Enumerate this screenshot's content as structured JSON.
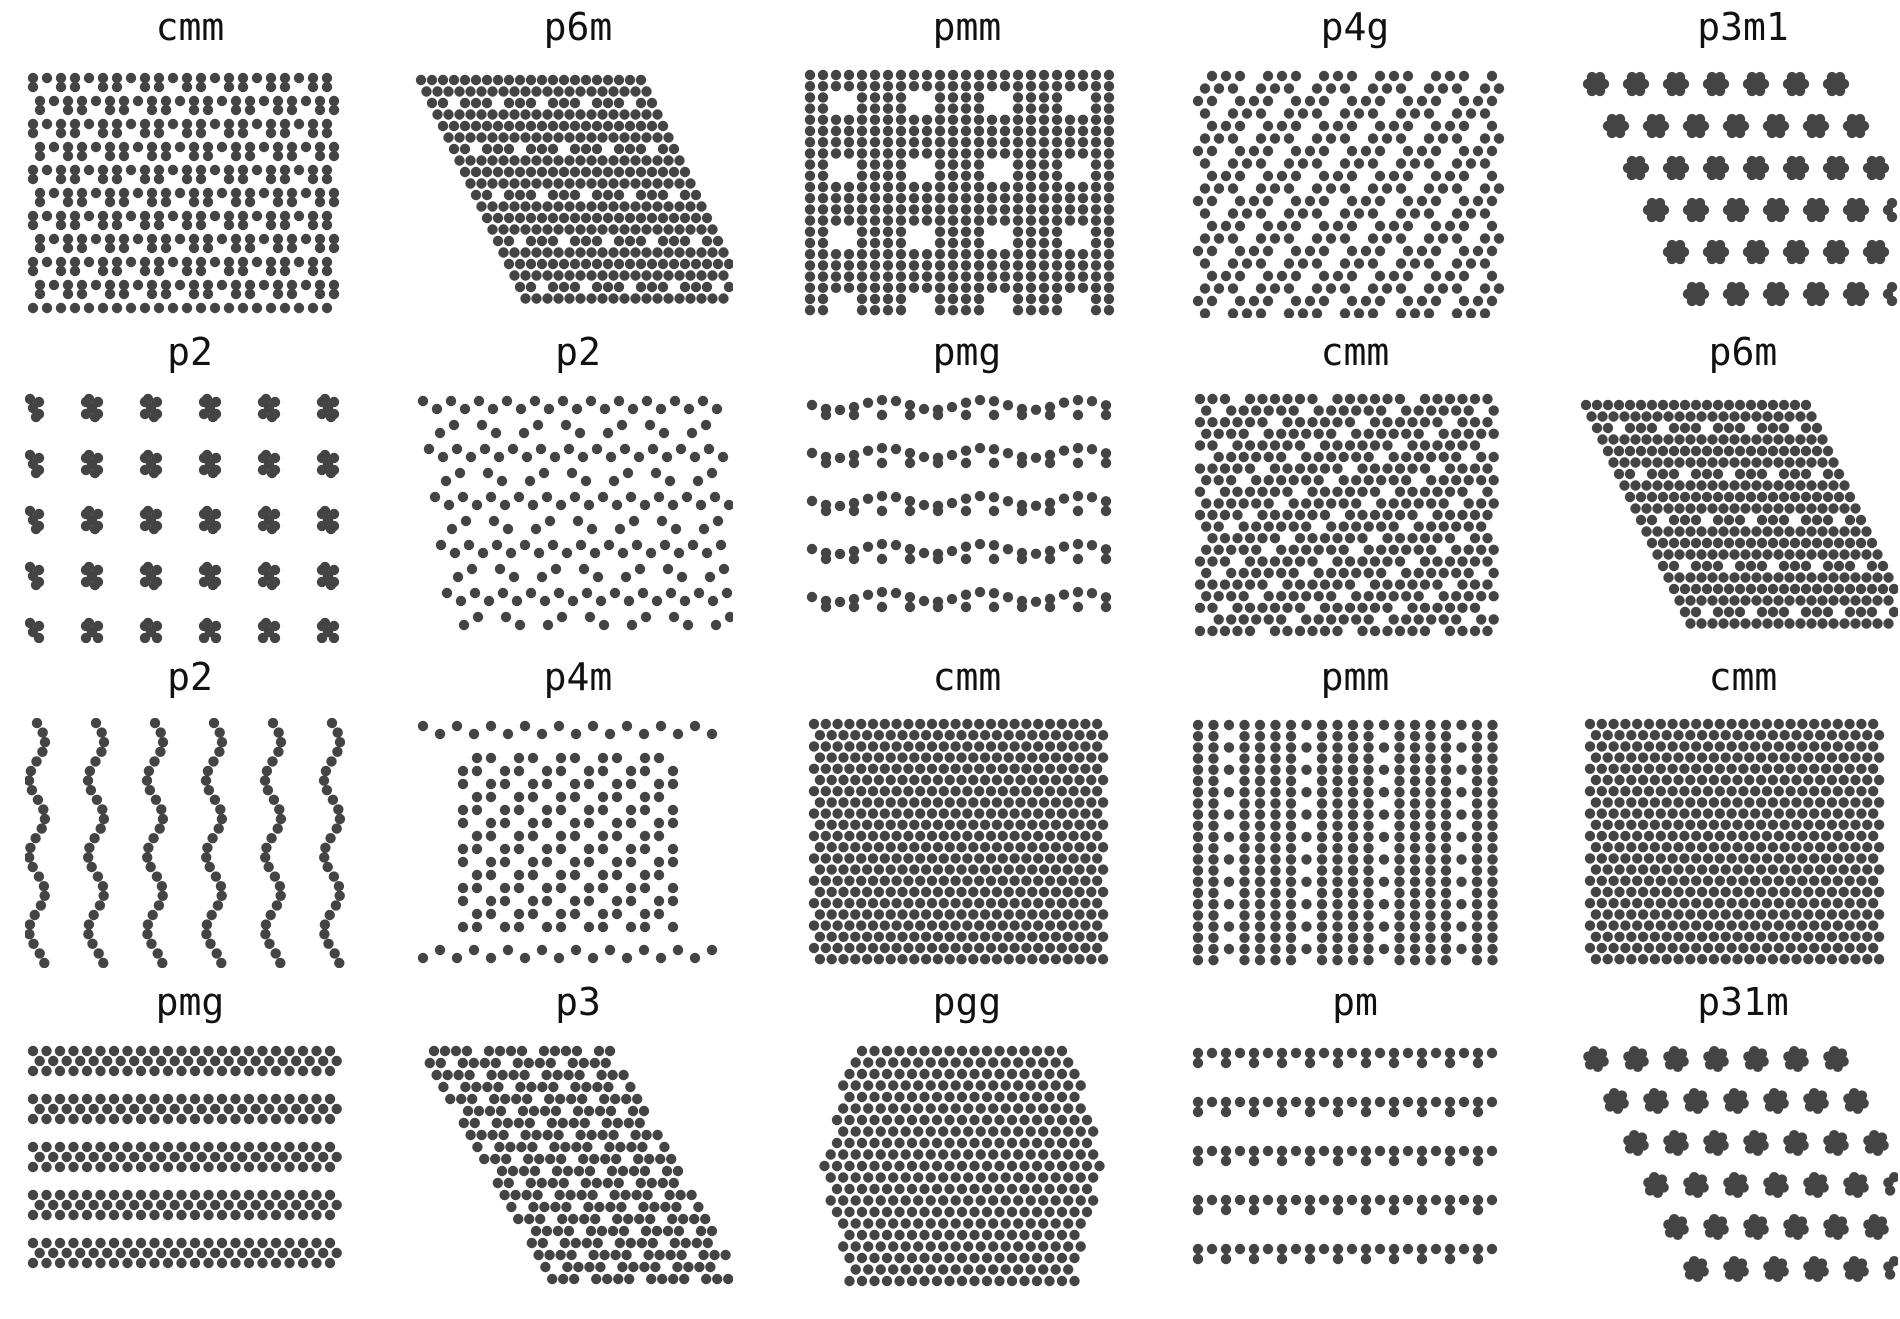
{
  "figure": {
    "dot_color": "#444444",
    "background": "#ffffff",
    "panels": [
      {
        "label": "cmm",
        "pattern": "cmm",
        "variant": 0
      },
      {
        "label": "p6m",
        "pattern": "p6m",
        "variant": 0
      },
      {
        "label": "pmm",
        "pattern": "pmm",
        "variant": 0
      },
      {
        "label": "p4g",
        "pattern": "p4g",
        "variant": 0
      },
      {
        "label": "p3m1",
        "pattern": "p3m1",
        "variant": 0
      },
      {
        "label": "p2",
        "pattern": "p2",
        "variant": 0
      },
      {
        "label": "p2",
        "pattern": "p2",
        "variant": 1
      },
      {
        "label": "pmg",
        "pattern": "pmg",
        "variant": 0
      },
      {
        "label": "cmm",
        "pattern": "cmm",
        "variant": 1
      },
      {
        "label": "p6m",
        "pattern": "p6m",
        "variant": 1
      },
      {
        "label": "p2",
        "pattern": "p2",
        "variant": 2
      },
      {
        "label": "p4m",
        "pattern": "p4m",
        "variant": 0
      },
      {
        "label": "cmm",
        "pattern": "cmm",
        "variant": 2
      },
      {
        "label": "pmm",
        "pattern": "pmm",
        "variant": 1
      },
      {
        "label": "cmm",
        "pattern": "cmm",
        "variant": 3
      },
      {
        "label": "pmg",
        "pattern": "pmg",
        "variant": 1
      },
      {
        "label": "p3",
        "pattern": "p3",
        "variant": 0
      },
      {
        "label": "pgg",
        "pattern": "pgg",
        "variant": 0
      },
      {
        "label": "pm",
        "pattern": "pm",
        "variant": 0
      },
      {
        "label": "p31m",
        "pattern": "p31m",
        "variant": 0
      }
    ]
  }
}
